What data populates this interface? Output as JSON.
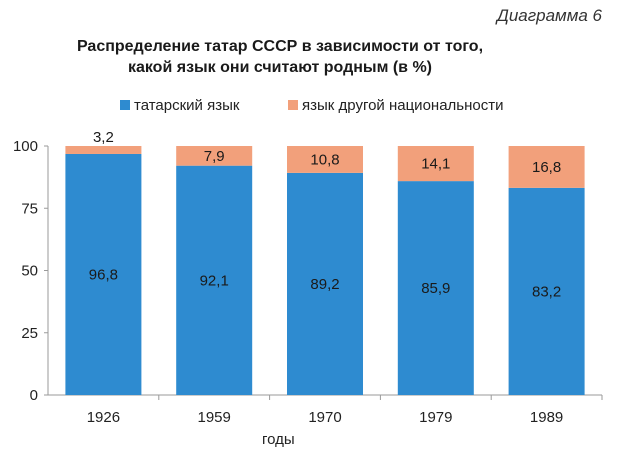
{
  "header": {
    "diagram_label": "Диаграмма 6",
    "title_line1": "Распределение татар СССР в зависимости от того,",
    "title_line2": "какой язык они считают родным (в %)"
  },
  "chart_data": {
    "type": "bar",
    "stacked": true,
    "categories": [
      "1926",
      "1959",
      "1970",
      "1979",
      "1989"
    ],
    "series": [
      {
        "name": "татарский язык",
        "color": "#2e8bd0",
        "values": [
          96.8,
          92.1,
          89.2,
          85.9,
          83.2
        ],
        "labels": [
          "96,8",
          "92,1",
          "89,2",
          "85,9",
          "83,2"
        ]
      },
      {
        "name": "язык другой национальности",
        "color": "#f2a07b",
        "values": [
          3.2,
          7.9,
          10.8,
          14.1,
          16.8
        ],
        "labels": [
          "3,2",
          "7,9",
          "10,8",
          "14,1",
          "16,8"
        ]
      }
    ],
    "xlabel": "годы",
    "ylabel": "",
    "ylim": [
      0,
      100
    ],
    "yticks": [
      0,
      25,
      50,
      75,
      100
    ],
    "legend_position": "top",
    "grid": false
  }
}
